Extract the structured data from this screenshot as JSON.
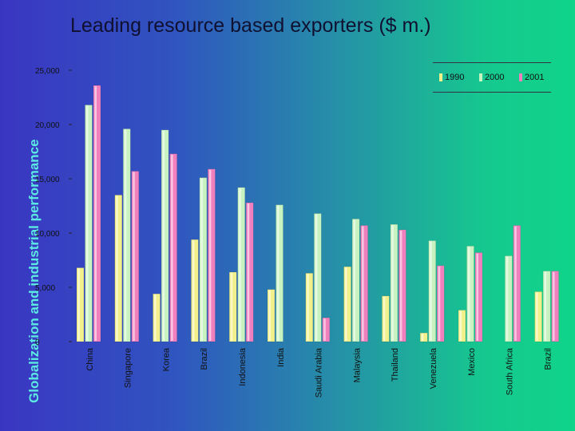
{
  "side_title": "Globalization and industrial performance",
  "colors": {
    "1990": "#f2f08a",
    "2000": "#c8f2c0",
    "2001": "#f07fbe"
  },
  "chart_data": {
    "type": "bar",
    "title": "Leading resource based exporters ($ m.)",
    "xlabel": "",
    "ylabel": "",
    "ylim": [
      0,
      25000
    ],
    "yticks": [
      0,
      5000,
      10000,
      15000,
      20000,
      25000
    ],
    "ytick_labels": [
      "0",
      "5,000",
      "10,000",
      "15,000",
      "20,000",
      "25,000"
    ],
    "grid": false,
    "legend_position": "top-right",
    "categories": [
      "China",
      "Singapore",
      "Korea",
      "Brazil",
      "Indonesia",
      "India",
      "Saudi Arabia",
      "Malaysia",
      "Thailand",
      "Venezuela",
      "Mexico",
      "South Africa",
      "Brazil"
    ],
    "series": [
      {
        "name": "1990",
        "values": [
          6800,
          13500,
          4400,
          9400,
          6400,
          4800,
          6300,
          6900,
          4200,
          800,
          2900,
          null,
          4600
        ]
      },
      {
        "name": "2000",
        "values": [
          21800,
          19600,
          19500,
          15100,
          14200,
          12600,
          11800,
          11300,
          10800,
          9300,
          8800,
          7900,
          6500
        ]
      },
      {
        "name": "2001",
        "values": [
          23600,
          15700,
          17300,
          15900,
          12800,
          null,
          2200,
          10700,
          10300,
          7000,
          8200,
          10700,
          6500
        ]
      }
    ]
  }
}
